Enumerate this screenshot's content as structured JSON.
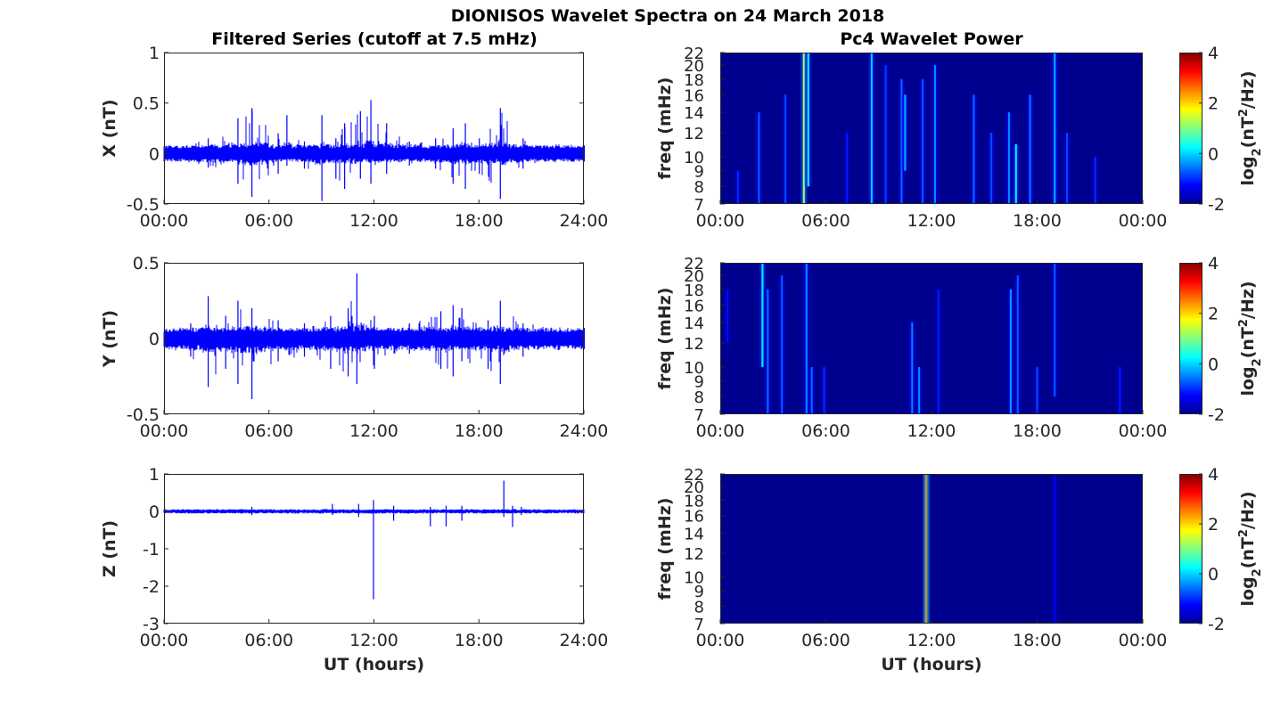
{
  "figure_title": "DIONISOS Wavelet Spectra on 24 March 2018",
  "left_column_title": "Filtered Series (cutoff at 7.5 mHz)",
  "right_column_title": "Pc4 Wavelet Power",
  "xlabel": "UT (hours)",
  "colors": {
    "series_line": "#0000ff",
    "heatmap_background": "#00008f",
    "axes": "#262626"
  },
  "chart_data": [
    {
      "type": "line",
      "panel": "X",
      "ylabel": "X (nT)",
      "x_ticks": [
        "00:00",
        "06:00",
        "12:00",
        "18:00",
        "24:00"
      ],
      "x_range_hours": [
        0,
        24
      ],
      "ylim": [
        -0.5,
        1
      ],
      "y_ticks": [
        "-0.5",
        "0",
        "0.5",
        "1"
      ],
      "y_tick_values": [
        -0.5,
        0,
        0.5,
        1
      ],
      "baseline_amplitude": 0.08,
      "series": [
        {
          "envelope": [
            {
              "x": 0.0,
              "max": 0.08,
              "min": -0.08
            },
            {
              "x": 2.5,
              "max": 0.15,
              "min": -0.14
            },
            {
              "x": 4.2,
              "max": 0.35,
              "min": -0.3
            },
            {
              "x": 5.0,
              "max": 0.45,
              "min": -0.43
            },
            {
              "x": 6.5,
              "max": 0.2,
              "min": -0.2
            },
            {
              "x": 7.0,
              "max": 0.38,
              "min": -0.12
            },
            {
              "x": 8.0,
              "max": 0.12,
              "min": -0.15
            },
            {
              "x": 9.0,
              "max": 0.38,
              "min": -0.47
            },
            {
              "x": 9.8,
              "max": 0.15,
              "min": -0.25
            },
            {
              "x": 10.3,
              "max": 0.3,
              "min": -0.35
            },
            {
              "x": 11.2,
              "max": 0.42,
              "min": -0.25
            },
            {
              "x": 11.8,
              "max": 0.53,
              "min": -0.3
            },
            {
              "x": 12.7,
              "max": 0.3,
              "min": -0.2
            },
            {
              "x": 14.0,
              "max": 0.12,
              "min": -0.12
            },
            {
              "x": 15.5,
              "max": 0.15,
              "min": -0.15
            },
            {
              "x": 16.5,
              "max": 0.25,
              "min": -0.3
            },
            {
              "x": 17.2,
              "max": 0.3,
              "min": -0.35
            },
            {
              "x": 18.0,
              "max": 0.15,
              "min": -0.2
            },
            {
              "x": 19.2,
              "max": 0.45,
              "min": -0.45
            },
            {
              "x": 20.5,
              "max": 0.15,
              "min": -0.15
            },
            {
              "x": 24.0,
              "max": 0.08,
              "min": -0.08
            }
          ]
        }
      ]
    },
    {
      "type": "line",
      "panel": "Y",
      "ylabel": "Y (nT)",
      "x_ticks": [
        "00:00",
        "06:00",
        "12:00",
        "18:00",
        "24:00"
      ],
      "x_range_hours": [
        0,
        24
      ],
      "ylim": [
        -0.5,
        0.5
      ],
      "y_ticks": [
        "-0.5",
        "0",
        "0.5"
      ],
      "y_tick_values": [
        -0.5,
        0,
        0.5
      ],
      "baseline_amplitude": 0.07,
      "series": [
        {
          "envelope": [
            {
              "x": 0.0,
              "max": 0.07,
              "min": -0.07
            },
            {
              "x": 1.5,
              "max": 0.1,
              "min": -0.12
            },
            {
              "x": 2.5,
              "max": 0.28,
              "min": -0.32
            },
            {
              "x": 3.5,
              "max": 0.15,
              "min": -0.2
            },
            {
              "x": 4.2,
              "max": 0.25,
              "min": -0.3
            },
            {
              "x": 5.0,
              "max": 0.2,
              "min": -0.4
            },
            {
              "x": 6.5,
              "max": 0.12,
              "min": -0.15
            },
            {
              "x": 8.0,
              "max": 0.1,
              "min": -0.12
            },
            {
              "x": 9.5,
              "max": 0.15,
              "min": -0.2
            },
            {
              "x": 10.5,
              "max": 0.2,
              "min": -0.25
            },
            {
              "x": 11.0,
              "max": 0.43,
              "min": -0.3
            },
            {
              "x": 12.0,
              "max": 0.15,
              "min": -0.2
            },
            {
              "x": 14.0,
              "max": 0.1,
              "min": -0.1
            },
            {
              "x": 15.8,
              "max": 0.18,
              "min": -0.2
            },
            {
              "x": 16.5,
              "max": 0.22,
              "min": -0.25
            },
            {
              "x": 17.0,
              "max": 0.2,
              "min": -0.15
            },
            {
              "x": 18.5,
              "max": 0.12,
              "min": -0.2
            },
            {
              "x": 19.2,
              "max": 0.25,
              "min": -0.3
            },
            {
              "x": 20.5,
              "max": 0.1,
              "min": -0.12
            },
            {
              "x": 24.0,
              "max": 0.07,
              "min": -0.07
            }
          ]
        }
      ]
    },
    {
      "type": "line",
      "panel": "Z",
      "ylabel": "Z (nT)",
      "x_ticks": [
        "00:00",
        "06:00",
        "12:00",
        "18:00",
        "24:00"
      ],
      "x_range_hours": [
        0,
        24
      ],
      "ylim": [
        -3,
        1
      ],
      "y_ticks": [
        "-3",
        "-2",
        "-1",
        "0",
        "1"
      ],
      "y_tick_values": [
        -3,
        -2,
        -1,
        0,
        1
      ],
      "baseline_amplitude": 0.06,
      "series": [
        {
          "spikes": [
            {
              "x": 5.0,
              "max": 0.12,
              "min": -0.1
            },
            {
              "x": 9.6,
              "max": 0.2,
              "min": -0.1
            },
            {
              "x": 11.1,
              "max": 0.2,
              "min": -0.15
            },
            {
              "x": 11.95,
              "max": 0.3,
              "min": -2.35
            },
            {
              "x": 13.1,
              "max": 0.15,
              "min": -0.25
            },
            {
              "x": 15.2,
              "max": 0.12,
              "min": -0.4
            },
            {
              "x": 16.1,
              "max": 0.15,
              "min": -0.4
            },
            {
              "x": 17.0,
              "max": 0.15,
              "min": -0.25
            },
            {
              "x": 19.4,
              "max": 0.82,
              "min": -0.15
            },
            {
              "x": 19.9,
              "max": 0.15,
              "min": -0.42
            },
            {
              "x": 20.4,
              "max": 0.12,
              "min": -0.1
            }
          ]
        }
      ]
    },
    {
      "type": "heatmap",
      "panel": "X wavelet",
      "ylabel": "freq (mHz)",
      "x_ticks": [
        "00:00",
        "06:00",
        "12:00",
        "18:00",
        "00:00"
      ],
      "y_ticks": [
        "7",
        "8",
        "9",
        "10",
        "12",
        "14",
        "16",
        "18",
        "20",
        "22"
      ],
      "y_tick_values": [
        7,
        8,
        9,
        10,
        12,
        14,
        16,
        18,
        20,
        22
      ],
      "ylim": [
        7,
        22
      ],
      "y_scale": "log",
      "colorbar": {
        "label": "log2(nT2/Hz)",
        "ticks": [
          "-2",
          "0",
          "2",
          "4"
        ],
        "range": [
          -2,
          4
        ],
        "colormap": "jet"
      },
      "streaks": [
        {
          "t": 1.0,
          "f0": 7,
          "f1": 9,
          "p": -1.0
        },
        {
          "t": 2.2,
          "f0": 7,
          "f1": 14,
          "p": -0.7
        },
        {
          "t": 3.7,
          "f0": 7,
          "f1": 16,
          "p": -0.8
        },
        {
          "t": 4.75,
          "f0": 7,
          "f1": 22,
          "p": 1.3
        },
        {
          "t": 5.0,
          "f0": 8,
          "f1": 22,
          "p": 0.3
        },
        {
          "t": 7.2,
          "f0": 7,
          "f1": 12,
          "p": -1.1
        },
        {
          "t": 8.6,
          "f0": 7,
          "f1": 22,
          "p": 0.0
        },
        {
          "t": 9.4,
          "f0": 7,
          "f1": 20,
          "p": -0.9
        },
        {
          "t": 10.3,
          "f0": 7,
          "f1": 18,
          "p": -0.6
        },
        {
          "t": 10.5,
          "f0": 9,
          "f1": 16,
          "p": -0.2
        },
        {
          "t": 11.5,
          "f0": 7,
          "f1": 18,
          "p": -0.7
        },
        {
          "t": 12.2,
          "f0": 7,
          "f1": 20,
          "p": -0.4
        },
        {
          "t": 14.4,
          "f0": 7,
          "f1": 16,
          "p": -0.6
        },
        {
          "t": 15.4,
          "f0": 7,
          "f1": 12,
          "p": -0.8
        },
        {
          "t": 16.4,
          "f0": 7,
          "f1": 14,
          "p": -0.4
        },
        {
          "t": 16.8,
          "f0": 7,
          "f1": 11,
          "p": 0.2
        },
        {
          "t": 17.6,
          "f0": 7,
          "f1": 16,
          "p": -0.5
        },
        {
          "t": 19.0,
          "f0": 7,
          "f1": 22,
          "p": -0.2
        },
        {
          "t": 19.7,
          "f0": 7,
          "f1": 12,
          "p": -0.8
        },
        {
          "t": 21.3,
          "f0": 7,
          "f1": 10,
          "p": -1.0
        }
      ]
    },
    {
      "type": "heatmap",
      "panel": "Y wavelet",
      "ylabel": "freq (mHz)",
      "x_ticks": [
        "00:00",
        "06:00",
        "12:00",
        "18:00",
        "00:00"
      ],
      "y_ticks": [
        "7",
        "8",
        "9",
        "10",
        "12",
        "14",
        "16",
        "18",
        "20",
        "22"
      ],
      "y_tick_values": [
        7,
        8,
        9,
        10,
        12,
        14,
        16,
        18,
        20,
        22
      ],
      "ylim": [
        7,
        22
      ],
      "y_scale": "log",
      "colorbar": {
        "label": "log2(nT2/Hz)",
        "ticks": [
          "-2",
          "0",
          "2",
          "4"
        ],
        "range": [
          -2,
          4
        ],
        "colormap": "jet"
      },
      "streaks": [
        {
          "t": 0.4,
          "f0": 12,
          "f1": 18,
          "p": -1.2
        },
        {
          "t": 2.4,
          "f0": 10,
          "f1": 22,
          "p": 0.2
        },
        {
          "t": 2.7,
          "f0": 7,
          "f1": 18,
          "p": -0.6
        },
        {
          "t": 3.5,
          "f0": 7,
          "f1": 20,
          "p": -0.7
        },
        {
          "t": 4.9,
          "f0": 7,
          "f1": 22,
          "p": -0.4
        },
        {
          "t": 5.2,
          "f0": 7,
          "f1": 10,
          "p": -0.6
        },
        {
          "t": 5.9,
          "f0": 7,
          "f1": 10,
          "p": -1.0
        },
        {
          "t": 10.9,
          "f0": 7,
          "f1": 14,
          "p": -0.5
        },
        {
          "t": 11.3,
          "f0": 7,
          "f1": 10,
          "p": -0.4
        },
        {
          "t": 12.4,
          "f0": 7,
          "f1": 18,
          "p": -1.1
        },
        {
          "t": 16.5,
          "f0": 7,
          "f1": 18,
          "p": -0.3
        },
        {
          "t": 16.9,
          "f0": 7,
          "f1": 20,
          "p": -0.7
        },
        {
          "t": 18.0,
          "f0": 7,
          "f1": 10,
          "p": -0.8
        },
        {
          "t": 19.0,
          "f0": 8,
          "f1": 22,
          "p": -0.7
        },
        {
          "t": 22.7,
          "f0": 7,
          "f1": 10,
          "p": -1.1
        }
      ]
    },
    {
      "type": "heatmap",
      "panel": "Z wavelet",
      "ylabel": "freq (mHz)",
      "x_ticks": [
        "00:00",
        "06:00",
        "12:00",
        "18:00",
        "00:00"
      ],
      "y_ticks": [
        "7",
        "8",
        "9",
        "10",
        "12",
        "14",
        "16",
        "18",
        "20",
        "22"
      ],
      "y_tick_values": [
        7,
        8,
        9,
        10,
        12,
        14,
        16,
        18,
        20,
        22
      ],
      "ylim": [
        7,
        22
      ],
      "y_scale": "log",
      "colorbar": {
        "label": "log2(nT2/Hz)",
        "ticks": [
          "-2",
          "0",
          "2",
          "4"
        ],
        "range": [
          -2,
          4
        ],
        "colormap": "jet"
      },
      "streaks": [
        {
          "t": 11.7,
          "f0": 7,
          "f1": 22,
          "p": 2.5
        },
        {
          "t": 19.0,
          "f0": 7,
          "f1": 22,
          "p": -1.3
        }
      ]
    }
  ]
}
